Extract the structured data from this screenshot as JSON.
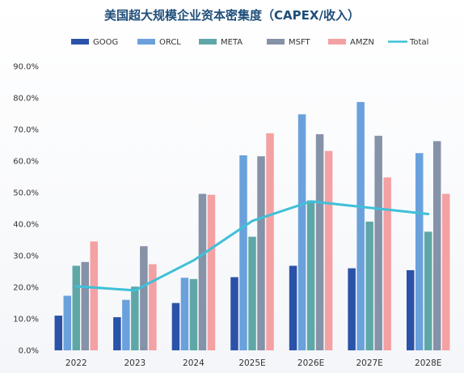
{
  "chart_data": {
    "type": "bar",
    "title": "美国超大规模企业资本密集度（CAPEX/收入）",
    "categories": [
      "2022",
      "2023",
      "2024",
      "2025E",
      "2026E",
      "2027E",
      "2028E"
    ],
    "series": [
      {
        "name": "GOOG",
        "color": "#2a52a8",
        "values": [
          11.0,
          10.5,
          15.0,
          23.2,
          26.8,
          26.0,
          25.4
        ]
      },
      {
        "name": "ORCL",
        "color": "#6aa1dc",
        "values": [
          17.3,
          16.0,
          23.0,
          61.8,
          74.8,
          78.7,
          62.5
        ]
      },
      {
        "name": "META",
        "color": "#5fa7a7",
        "values": [
          26.8,
          20.2,
          22.6,
          36.0,
          47.5,
          40.8,
          37.6
        ]
      },
      {
        "name": "MSFT",
        "color": "#8592a8",
        "values": [
          28.0,
          33.0,
          49.6,
          61.5,
          68.5,
          68.0,
          66.3
        ]
      },
      {
        "name": "AMZN",
        "color": "#f4a1a3",
        "values": [
          34.5,
          27.3,
          49.3,
          68.8,
          63.2,
          54.8,
          49.6
        ]
      }
    ],
    "line_series": {
      "name": "Total",
      "color": "#3fc0d8",
      "values": [
        20.3,
        19.0,
        28.5,
        41.0,
        47.2,
        45.2,
        43.2
      ]
    },
    "y_ticks": [
      "0.0%",
      "10.0%",
      "20.0%",
      "30.0%",
      "40.0%",
      "50.0%",
      "60.0%",
      "70.0%",
      "80.0%",
      "90.0%"
    ],
    "ylim": [
      0,
      90
    ],
    "legend_position": "top",
    "grid": false
  }
}
